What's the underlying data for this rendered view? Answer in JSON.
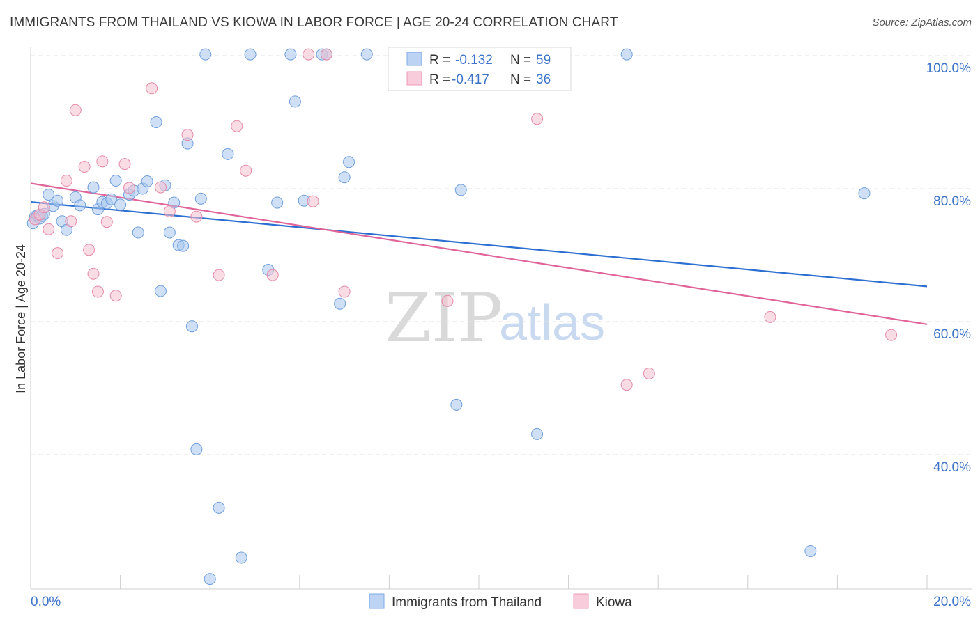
{
  "header": {
    "title": "IMMIGRANTS FROM THAILAND VS KIOWA IN LABOR FORCE | AGE 20-24 CORRELATION CHART",
    "source": "Source: ZipAtlas.com"
  },
  "watermark": {
    "zip": "ZIP",
    "atlas": "atlas"
  },
  "chart_data": {
    "type": "scatter",
    "ylabel": "In Labor Force | Age 20-24",
    "xlim": [
      0,
      20
    ],
    "ylim": [
      21,
      102
    ],
    "x_tick_labels": [
      "0.0%",
      "20.0%"
    ],
    "y_ticks": [
      {
        "value": 100,
        "label": "100.0%"
      },
      {
        "value": 80,
        "label": "80.0%"
      },
      {
        "value": 60,
        "label": "60.0%"
      },
      {
        "value": 40,
        "label": "40.0%"
      }
    ],
    "grid": "horizontal dashed",
    "legend_position": "top-center",
    "legend": [
      {
        "series": "Immigrants from Thailand",
        "r_label": "R =",
        "r": "-0.132",
        "n_label": "N =",
        "n": "59"
      },
      {
        "series": "Kiowa",
        "r_label": "R =",
        "r": "-0.417",
        "n_label": "N =",
        "n": "36"
      }
    ],
    "series": [
      {
        "name": "Immigrants from Thailand",
        "color": "#a8c6ee",
        "stroke": "#6f9fdc",
        "line_color": "#2d6fd0",
        "trend": {
          "x": [
            0,
            20
          ],
          "y": [
            78.0,
            65.3
          ]
        },
        "points": [
          [
            0.1,
            75.8
          ],
          [
            0.2,
            75.5
          ],
          [
            0.3,
            76.2
          ],
          [
            0.4,
            79.1
          ],
          [
            0.5,
            77.4
          ],
          [
            0.6,
            78.2
          ],
          [
            0.7,
            75.1
          ],
          [
            0.8,
            73.8
          ],
          [
            1.0,
            78.7
          ],
          [
            1.1,
            77.5
          ],
          [
            1.4,
            80.2
          ],
          [
            1.5,
            76.9
          ],
          [
            1.6,
            78.0
          ],
          [
            1.7,
            77.8
          ],
          [
            1.8,
            78.4
          ],
          [
            1.9,
            81.2
          ],
          [
            2.0,
            77.6
          ],
          [
            2.2,
            79.1
          ],
          [
            2.3,
            79.7
          ],
          [
            2.4,
            73.4
          ],
          [
            2.5,
            80.0
          ],
          [
            2.6,
            81.1
          ],
          [
            2.8,
            90.0
          ],
          [
            2.9,
            64.6
          ],
          [
            3.0,
            80.5
          ],
          [
            3.1,
            73.4
          ],
          [
            3.2,
            77.9
          ],
          [
            3.3,
            71.5
          ],
          [
            3.4,
            71.4
          ],
          [
            3.5,
            86.8
          ],
          [
            3.6,
            59.3
          ],
          [
            3.7,
            40.8
          ],
          [
            3.8,
            78.5
          ],
          [
            3.9,
            100.2
          ],
          [
            4.0,
            21.3
          ],
          [
            4.2,
            32.0
          ],
          [
            4.4,
            85.2
          ],
          [
            4.7,
            24.5
          ],
          [
            4.9,
            100.2
          ],
          [
            5.3,
            67.8
          ],
          [
            5.5,
            77.9
          ],
          [
            5.8,
            100.2
          ],
          [
            5.9,
            93.1
          ],
          [
            6.1,
            78.2
          ],
          [
            6.5,
            100.2
          ],
          [
            6.6,
            100.2
          ],
          [
            6.9,
            62.7
          ],
          [
            7.0,
            81.7
          ],
          [
            7.1,
            84.0
          ],
          [
            7.5,
            100.2
          ],
          [
            9.5,
            47.5
          ],
          [
            9.6,
            79.8
          ],
          [
            11.3,
            43.1
          ],
          [
            13.3,
            100.2
          ],
          [
            17.4,
            25.5
          ],
          [
            18.6,
            79.3
          ],
          [
            0.05,
            74.8
          ],
          [
            0.15,
            76.0
          ],
          [
            0.25,
            75.9
          ]
        ]
      },
      {
        "name": "Kiowa",
        "color": "#f6bfd0",
        "stroke": "#e58aa8",
        "line_color": "#e0649a",
        "trend": {
          "x": [
            0,
            20
          ],
          "y": [
            80.8,
            59.6
          ]
        },
        "points": [
          [
            0.1,
            75.4
          ],
          [
            0.2,
            76.1
          ],
          [
            0.3,
            77.2
          ],
          [
            0.4,
            73.9
          ],
          [
            0.6,
            70.3
          ],
          [
            0.8,
            81.2
          ],
          [
            0.9,
            75.1
          ],
          [
            1.0,
            91.8
          ],
          [
            1.2,
            83.3
          ],
          [
            1.3,
            70.8
          ],
          [
            1.4,
            67.2
          ],
          [
            1.5,
            64.5
          ],
          [
            1.6,
            84.1
          ],
          [
            1.7,
            75.0
          ],
          [
            1.9,
            63.9
          ],
          [
            2.1,
            83.7
          ],
          [
            2.2,
            80.1
          ],
          [
            2.7,
            95.1
          ],
          [
            2.9,
            80.2
          ],
          [
            3.1,
            76.6
          ],
          [
            3.5,
            88.1
          ],
          [
            3.7,
            75.8
          ],
          [
            4.2,
            67.0
          ],
          [
            4.6,
            89.4
          ],
          [
            4.8,
            82.7
          ],
          [
            5.4,
            67.0
          ],
          [
            6.2,
            100.2
          ],
          [
            6.3,
            78.1
          ],
          [
            6.6,
            100.2
          ],
          [
            7.0,
            64.5
          ],
          [
            9.3,
            63.1
          ],
          [
            11.3,
            90.5
          ],
          [
            13.3,
            50.5
          ],
          [
            13.8,
            52.2
          ],
          [
            16.5,
            60.7
          ],
          [
            19.2,
            58.0
          ]
        ]
      }
    ]
  }
}
